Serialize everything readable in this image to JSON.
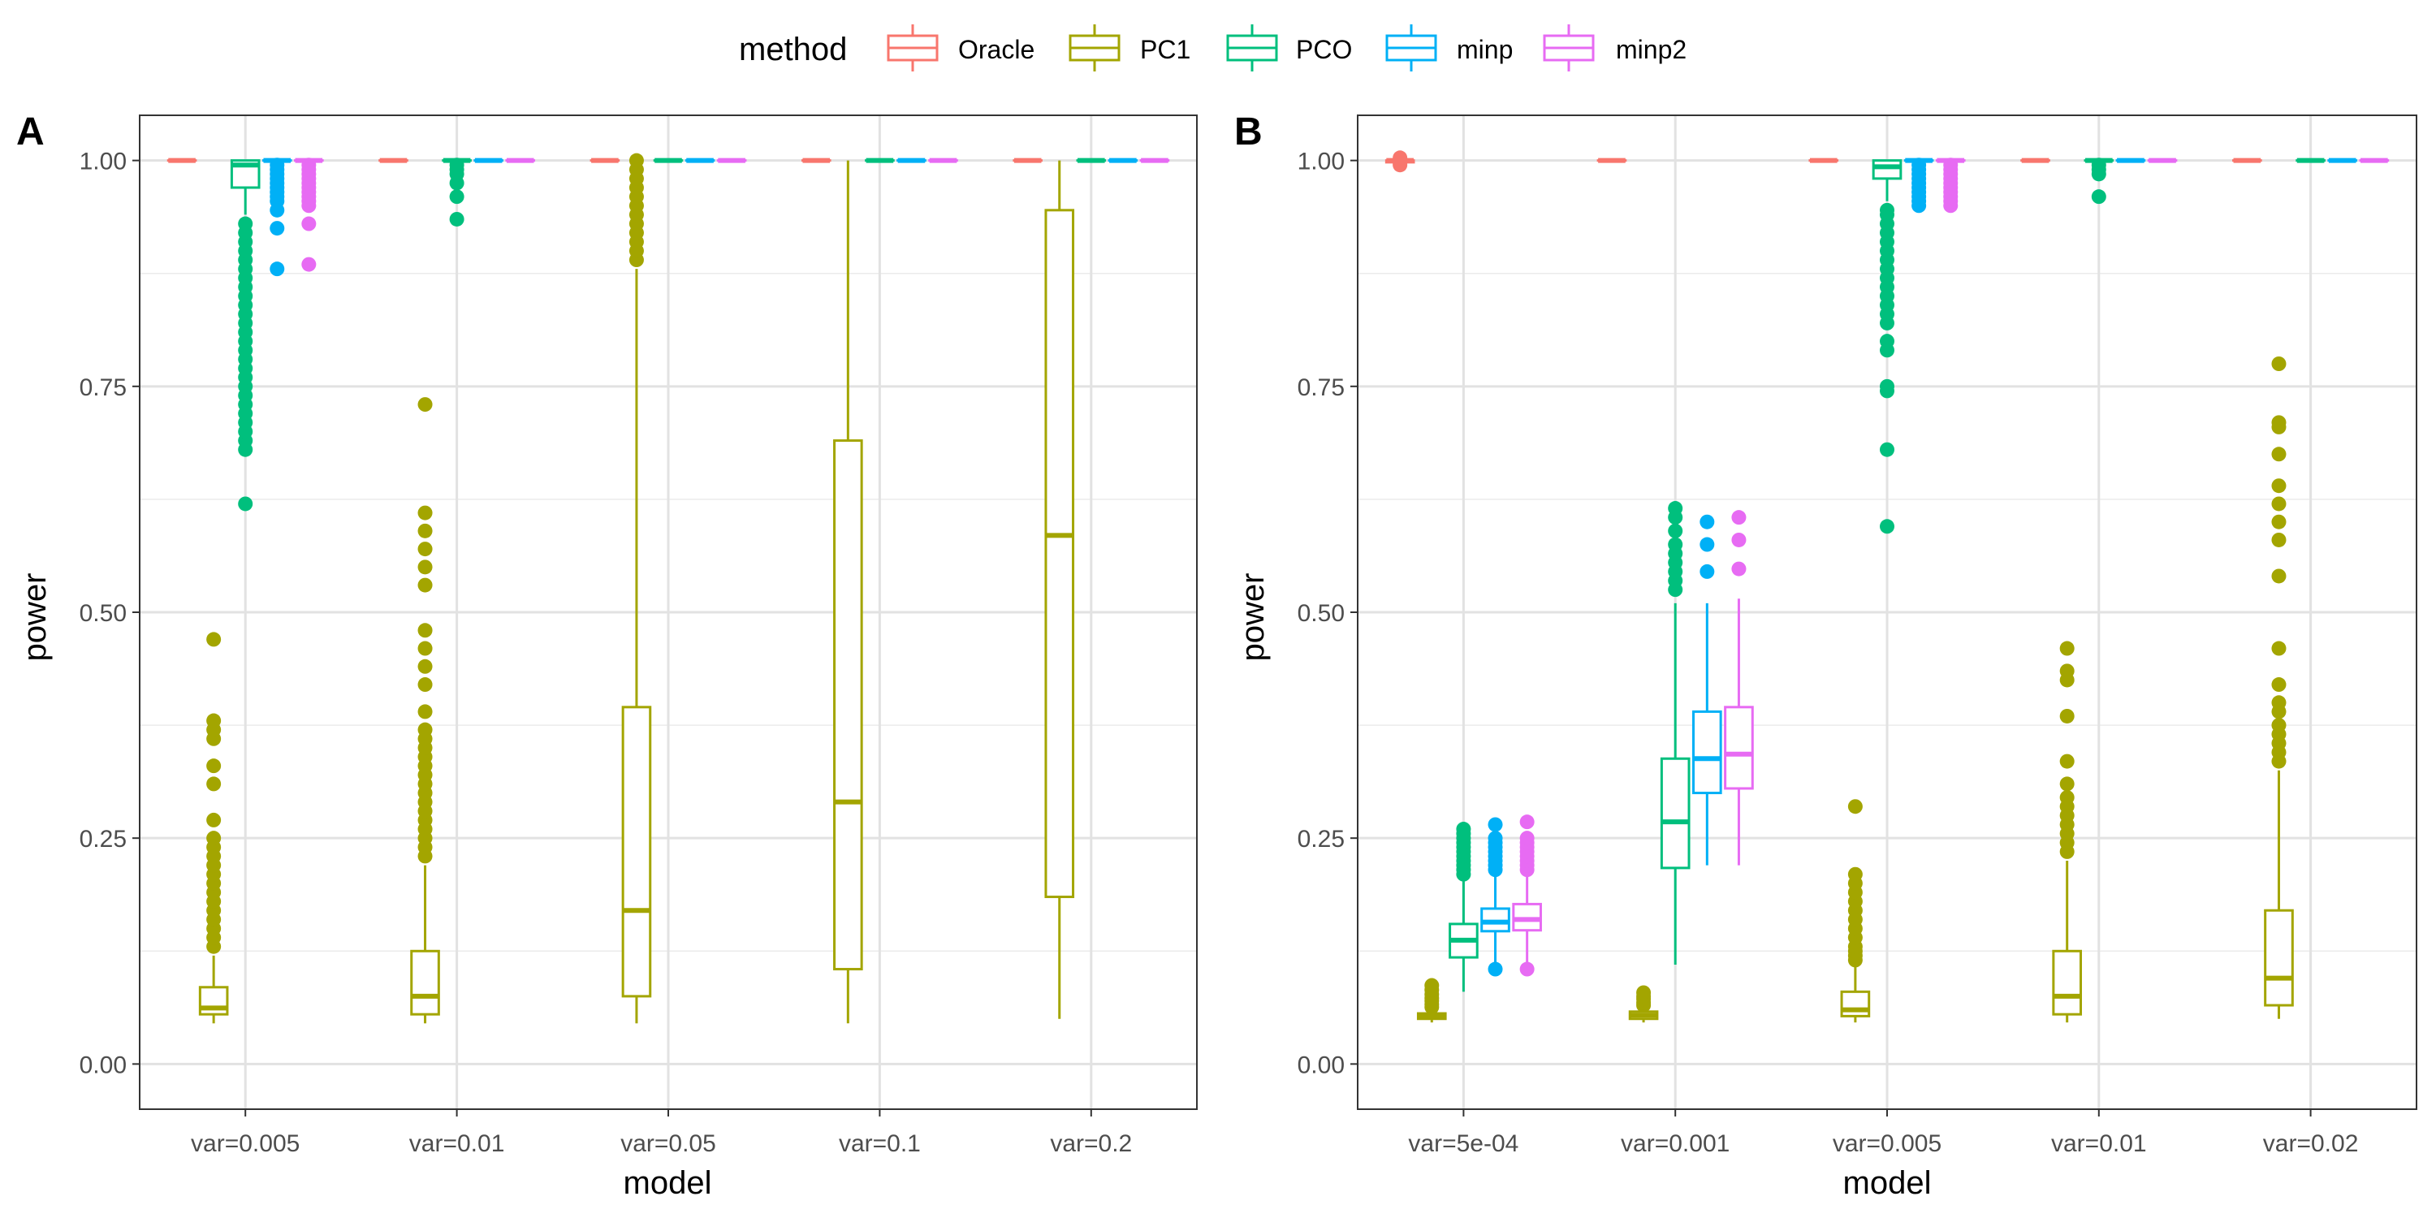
{
  "legend": {
    "title": "method",
    "position": "top",
    "entries": [
      {
        "name": "Oracle",
        "color": "#F8766D"
      },
      {
        "name": "PC1",
        "color": "#A3A500"
      },
      {
        "name": "PCO",
        "color": "#00BF7D"
      },
      {
        "name": "minp",
        "color": "#00B0F6"
      },
      {
        "name": "minp2",
        "color": "#E76BF3"
      }
    ]
  },
  "chart_data": [
    {
      "type": "boxplot",
      "panel": "A",
      "xlabel": "model",
      "ylabel": "power",
      "ylim": [
        -0.05,
        1.05
      ],
      "yticks": [
        "0.00",
        "0.25",
        "0.50",
        "0.75",
        "1.00"
      ],
      "grid": true,
      "categories": [
        "var=0.005",
        "var=0.01",
        "var=0.05",
        "var=0.1",
        "var=0.2"
      ],
      "series": [
        {
          "name": "Oracle",
          "boxes": [
            {
              "min": 1,
              "q1": 1,
              "median": 1,
              "q3": 1,
              "max": 1,
              "outliers": []
            },
            {
              "min": 1,
              "q1": 1,
              "median": 1,
              "q3": 1,
              "max": 1,
              "outliers": []
            },
            {
              "min": 1,
              "q1": 1,
              "median": 1,
              "q3": 1,
              "max": 1,
              "outliers": []
            },
            {
              "min": 1,
              "q1": 1,
              "median": 1,
              "q3": 1,
              "max": 1,
              "outliers": []
            },
            {
              "min": 1,
              "q1": 1,
              "median": 1,
              "q3": 1,
              "max": 1,
              "outliers": []
            }
          ]
        },
        {
          "name": "PC1",
          "boxes": [
            {
              "min": 0.045,
              "q1": 0.055,
              "median": 0.062,
              "q3": 0.085,
              "max": 0.12,
              "outliers": [
                0.13,
                0.14,
                0.15,
                0.16,
                0.17,
                0.18,
                0.19,
                0.2,
                0.21,
                0.22,
                0.23,
                0.24,
                0.25,
                0.27,
                0.31,
                0.33,
                0.36,
                0.37,
                0.38,
                0.47
              ]
            },
            {
              "min": 0.045,
              "q1": 0.055,
              "median": 0.075,
              "q3": 0.125,
              "max": 0.22,
              "outliers": [
                0.23,
                0.24,
                0.25,
                0.26,
                0.27,
                0.28,
                0.29,
                0.3,
                0.31,
                0.32,
                0.33,
                0.34,
                0.35,
                0.36,
                0.37,
                0.39,
                0.42,
                0.44,
                0.46,
                0.48,
                0.53,
                0.55,
                0.57,
                0.59,
                0.61,
                0.73
              ]
            },
            {
              "min": 0.045,
              "q1": 0.075,
              "median": 0.17,
              "q3": 0.395,
              "max": 0.88,
              "outliers": [
                0.89,
                0.9,
                0.91,
                0.92,
                0.93,
                0.94,
                0.95,
                0.96,
                0.97,
                0.98,
                0.99,
                1.0
              ]
            },
            {
              "min": 0.045,
              "q1": 0.105,
              "median": 0.29,
              "q3": 0.69,
              "max": 1.0,
              "outliers": []
            },
            {
              "min": 0.05,
              "q1": 0.185,
              "median": 0.585,
              "q3": 0.945,
              "max": 1.0,
              "outliers": []
            }
          ]
        },
        {
          "name": "PCO",
          "boxes": [
            {
              "min": 0.94,
              "q1": 0.97,
              "median": 0.995,
              "q3": 1.0,
              "max": 1.0,
              "outliers": [
                0.62,
                0.68,
                0.69,
                0.7,
                0.71,
                0.72,
                0.73,
                0.74,
                0.75,
                0.76,
                0.77,
                0.78,
                0.79,
                0.8,
                0.81,
                0.82,
                0.83,
                0.84,
                0.85,
                0.86,
                0.87,
                0.88,
                0.89,
                0.9,
                0.91,
                0.92,
                0.93
              ]
            },
            {
              "min": 1,
              "q1": 1,
              "median": 1,
              "q3": 1,
              "max": 1,
              "outliers": [
                0.935,
                0.96,
                0.975,
                0.985,
                0.99,
                0.995
              ]
            },
            {
              "min": 1,
              "q1": 1,
              "median": 1,
              "q3": 1,
              "max": 1,
              "outliers": []
            },
            {
              "min": 1,
              "q1": 1,
              "median": 1,
              "q3": 1,
              "max": 1,
              "outliers": []
            },
            {
              "min": 1,
              "q1": 1,
              "median": 1,
              "q3": 1,
              "max": 1,
              "outliers": []
            }
          ]
        },
        {
          "name": "minp",
          "boxes": [
            {
              "min": 1,
              "q1": 1,
              "median": 1,
              "q3": 1,
              "max": 1,
              "outliers": [
                0.88,
                0.925,
                0.945,
                0.955,
                0.96,
                0.965,
                0.97,
                0.975,
                0.98,
                0.985,
                0.99,
                0.995
              ]
            },
            {
              "min": 1,
              "q1": 1,
              "median": 1,
              "q3": 1,
              "max": 1,
              "outliers": []
            },
            {
              "min": 1,
              "q1": 1,
              "median": 1,
              "q3": 1,
              "max": 1,
              "outliers": []
            },
            {
              "min": 1,
              "q1": 1,
              "median": 1,
              "q3": 1,
              "max": 1,
              "outliers": []
            },
            {
              "min": 1,
              "q1": 1,
              "median": 1,
              "q3": 1,
              "max": 1,
              "outliers": []
            }
          ]
        },
        {
          "name": "minp2",
          "boxes": [
            {
              "min": 1,
              "q1": 1,
              "median": 1,
              "q3": 1,
              "max": 1,
              "outliers": [
                0.885,
                0.93,
                0.95,
                0.955,
                0.96,
                0.965,
                0.97,
                0.975,
                0.98,
                0.985,
                0.99,
                0.995
              ]
            },
            {
              "min": 1,
              "q1": 1,
              "median": 1,
              "q3": 1,
              "max": 1,
              "outliers": []
            },
            {
              "min": 1,
              "q1": 1,
              "median": 1,
              "q3": 1,
              "max": 1,
              "outliers": []
            },
            {
              "min": 1,
              "q1": 1,
              "median": 1,
              "q3": 1,
              "max": 1,
              "outliers": []
            },
            {
              "min": 1,
              "q1": 1,
              "median": 1,
              "q3": 1,
              "max": 1,
              "outliers": []
            }
          ]
        }
      ]
    },
    {
      "type": "boxplot",
      "panel": "B",
      "xlabel": "model",
      "ylabel": "power",
      "ylim": [
        -0.05,
        1.05
      ],
      "yticks": [
        "0.00",
        "0.25",
        "0.50",
        "0.75",
        "1.00"
      ],
      "grid": true,
      "categories": [
        "var=5e-04",
        "var=0.001",
        "var=0.005",
        "var=0.01",
        "var=0.02"
      ],
      "series": [
        {
          "name": "Oracle",
          "boxes": [
            {
              "min": 0.995,
              "q1": 0.998,
              "median": 1,
              "q3": 1,
              "max": 1,
              "outliers": [
                0.995,
                0.997,
                1.003
              ]
            },
            {
              "min": 1,
              "q1": 1,
              "median": 1,
              "q3": 1,
              "max": 1,
              "outliers": []
            },
            {
              "min": 1,
              "q1": 1,
              "median": 1,
              "q3": 1,
              "max": 1,
              "outliers": []
            },
            {
              "min": 1,
              "q1": 1,
              "median": 1,
              "q3": 1,
              "max": 1,
              "outliers": []
            },
            {
              "min": 1,
              "q1": 1,
              "median": 1,
              "q3": 1,
              "max": 1,
              "outliers": []
            }
          ]
        },
        {
          "name": "PC1",
          "boxes": [
            {
              "min": 0.046,
              "q1": 0.05,
              "median": 0.053,
              "q3": 0.056,
              "max": 0.06,
              "outliers": [
                0.063,
                0.066,
                0.07,
                0.073,
                0.077,
                0.082,
                0.087
              ]
            },
            {
              "min": 0.046,
              "q1": 0.05,
              "median": 0.054,
              "q3": 0.058,
              "max": 0.062,
              "outliers": [
                0.065,
                0.068,
                0.072,
                0.075,
                0.079
              ]
            },
            {
              "min": 0.046,
              "q1": 0.053,
              "median": 0.06,
              "q3": 0.08,
              "max": 0.11,
              "outliers": [
                0.115,
                0.12,
                0.125,
                0.13,
                0.14,
                0.15,
                0.16,
                0.17,
                0.18,
                0.19,
                0.2,
                0.21,
                0.285
              ]
            },
            {
              "min": 0.046,
              "q1": 0.055,
              "median": 0.075,
              "q3": 0.125,
              "max": 0.225,
              "outliers": [
                0.235,
                0.245,
                0.255,
                0.265,
                0.275,
                0.285,
                0.295,
                0.31,
                0.335,
                0.385,
                0.425,
                0.435,
                0.46
              ]
            },
            {
              "min": 0.05,
              "q1": 0.065,
              "median": 0.095,
              "q3": 0.17,
              "max": 0.325,
              "outliers": [
                0.335,
                0.345,
                0.355,
                0.365,
                0.375,
                0.39,
                0.4,
                0.42,
                0.46,
                0.54,
                0.58,
                0.6,
                0.62,
                0.64,
                0.675,
                0.705,
                0.71,
                0.775
              ]
            }
          ]
        },
        {
          "name": "PCO",
          "boxes": [
            {
              "min": 0.08,
              "q1": 0.118,
              "median": 0.137,
              "q3": 0.155,
              "max": 0.205,
              "outliers": [
                0.21,
                0.215,
                0.22,
                0.225,
                0.23,
                0.235,
                0.24,
                0.245,
                0.25,
                0.255,
                0.26
              ]
            },
            {
              "min": 0.11,
              "q1": 0.217,
              "median": 0.268,
              "q3": 0.338,
              "max": 0.51,
              "outliers": [
                0.525,
                0.535,
                0.545,
                0.555,
                0.565,
                0.575,
                0.59,
                0.605,
                0.615
              ]
            },
            {
              "min": 0.955,
              "q1": 0.98,
              "median": 0.993,
              "q3": 1.0,
              "max": 1.0,
              "outliers": [
                0.595,
                0.68,
                0.745,
                0.75,
                0.79,
                0.8,
                0.82,
                0.83,
                0.84,
                0.85,
                0.86,
                0.87,
                0.88,
                0.89,
                0.9,
                0.91,
                0.92,
                0.93,
                0.94,
                0.945
              ]
            },
            {
              "min": 1,
              "q1": 1,
              "median": 1,
              "q3": 1,
              "max": 1,
              "outliers": [
                0.96,
                0.985,
                0.99,
                0.995
              ]
            },
            {
              "min": 1,
              "q1": 1,
              "median": 1,
              "q3": 1,
              "max": 1,
              "outliers": []
            }
          ]
        },
        {
          "name": "minp",
          "boxes": [
            {
              "min": 0.105,
              "q1": 0.147,
              "median": 0.157,
              "q3": 0.172,
              "max": 0.21,
              "outliers": [
                0.105,
                0.215,
                0.22,
                0.225,
                0.23,
                0.235,
                0.24,
                0.245,
                0.25,
                0.265
              ]
            },
            {
              "min": 0.22,
              "q1": 0.3,
              "median": 0.338,
              "q3": 0.39,
              "max": 0.51,
              "outliers": [
                0.545,
                0.575,
                0.6
              ]
            },
            {
              "min": 1,
              "q1": 1,
              "median": 1,
              "q3": 1,
              "max": 1,
              "outliers": [
                0.95,
                0.955,
                0.96,
                0.965,
                0.97,
                0.975,
                0.98,
                0.985,
                0.99,
                0.995
              ]
            },
            {
              "min": 1,
              "q1": 1,
              "median": 1,
              "q3": 1,
              "max": 1,
              "outliers": []
            },
            {
              "min": 1,
              "q1": 1,
              "median": 1,
              "q3": 1,
              "max": 1,
              "outliers": []
            }
          ]
        },
        {
          "name": "minp2",
          "boxes": [
            {
              "min": 0.105,
              "q1": 0.148,
              "median": 0.16,
              "q3": 0.177,
              "max": 0.212,
              "outliers": [
                0.105,
                0.215,
                0.22,
                0.225,
                0.23,
                0.235,
                0.24,
                0.245,
                0.25,
                0.268
              ]
            },
            {
              "min": 0.22,
              "q1": 0.305,
              "median": 0.343,
              "q3": 0.395,
              "max": 0.515,
              "outliers": [
                0.548,
                0.58,
                0.605
              ]
            },
            {
              "min": 1,
              "q1": 1,
              "median": 1,
              "q3": 1,
              "max": 1,
              "outliers": [
                0.95,
                0.955,
                0.96,
                0.965,
                0.97,
                0.975,
                0.98,
                0.985,
                0.99,
                0.995
              ]
            },
            {
              "min": 1,
              "q1": 1,
              "median": 1,
              "q3": 1,
              "max": 1,
              "outliers": []
            },
            {
              "min": 1,
              "q1": 1,
              "median": 1,
              "q3": 1,
              "max": 1,
              "outliers": []
            }
          ]
        }
      ]
    }
  ]
}
